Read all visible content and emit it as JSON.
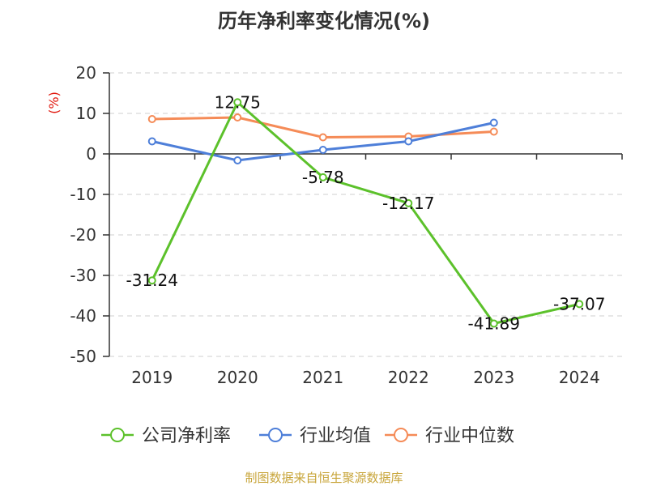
{
  "colors": {
    "company": "#5cc12b",
    "industry_avg": "#4e7fd9",
    "industry_median": "#f58b57"
  },
  "footer": "制图数据来自恒生聚源数据库",
  "chart_data": {
    "type": "line",
    "title": "历年净利率变化情况(%)",
    "ylabel": "(%)",
    "xlabel": "",
    "categories": [
      "2019",
      "2020",
      "2021",
      "2022",
      "2023",
      "2024"
    ],
    "ylim": [
      -50,
      20
    ],
    "yticks": [
      20,
      10,
      0,
      -10,
      -20,
      -30,
      -40,
      -50
    ],
    "ytick_labels": [
      "20",
      "10",
      "0",
      "-10",
      "-20",
      "-30",
      "-40",
      "-50"
    ],
    "grid": true,
    "legend_position": "bottom",
    "series": [
      {
        "name": "公司净利率",
        "color_key": "company",
        "values": [
          -31.24,
          12.75,
          -5.78,
          -12.17,
          -41.89,
          -37.07
        ],
        "labels": [
          "-31.24",
          "12.75",
          "-5.78",
          "-12.17",
          "-41.89",
          "-37.07"
        ]
      },
      {
        "name": "行业均值",
        "color_key": "industry_avg",
        "values": [
          3.1,
          -1.6,
          1.0,
          3.1,
          7.7,
          null
        ]
      },
      {
        "name": "行业中位数",
        "color_key": "industry_median",
        "values": [
          8.6,
          9.0,
          4.1,
          4.3,
          5.5,
          null
        ]
      }
    ]
  }
}
